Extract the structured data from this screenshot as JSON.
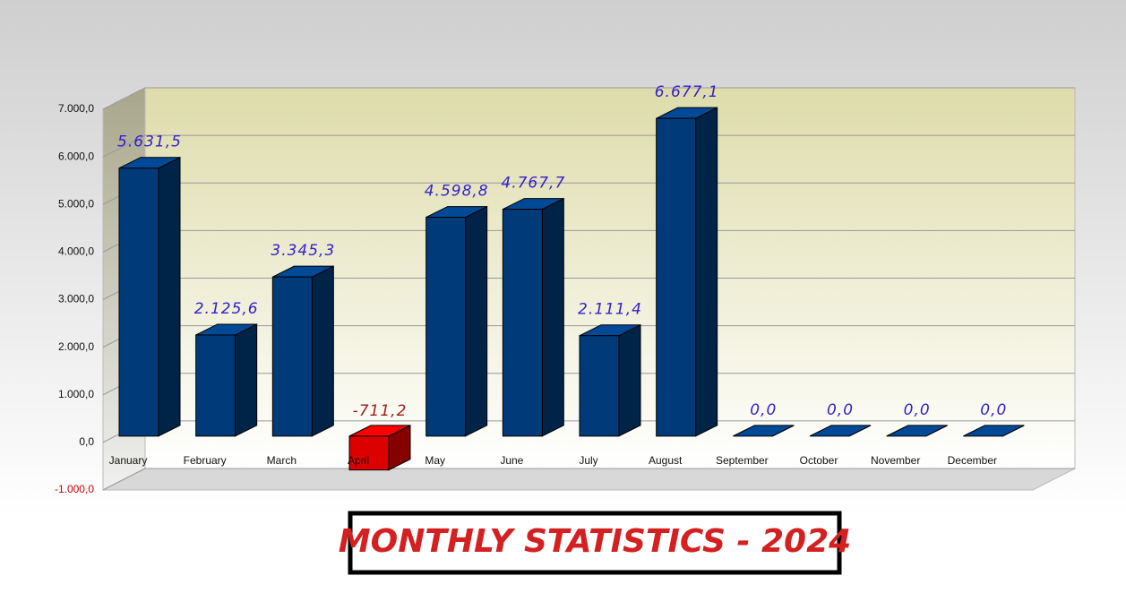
{
  "chart_data": {
    "type": "bar3d",
    "title": "MONTHLY STATISTICS - 2024",
    "categories": [
      "January",
      "February",
      "March",
      "April",
      "May",
      "June",
      "July",
      "August",
      "September",
      "October",
      "November",
      "December"
    ],
    "values": [
      5631.5,
      2125.6,
      3345.3,
      -711.2,
      4598.8,
      4767.7,
      2111.4,
      6677.1,
      0,
      0,
      0,
      0
    ],
    "value_labels": [
      "5.631,5",
      "2.125,6",
      "3.345,3",
      "-711,2",
      "4.598,8",
      "4.767,7",
      "2.111,4",
      "6.677,1",
      "0,0",
      "0,0",
      "0,0",
      "0,0"
    ],
    "color": "#003a78",
    "negative_color": "#dd0000",
    "ylim": [
      -1000,
      7000
    ],
    "yticks": [
      {
        "value": -1000,
        "label": "-1.000,0"
      },
      {
        "value": 0,
        "label": "0,0"
      },
      {
        "value": 1000,
        "label": "1.000,0"
      },
      {
        "value": 2000,
        "label": "2.000,0"
      },
      {
        "value": 3000,
        "label": "3.000,0"
      },
      {
        "value": 4000,
        "label": "4.000,0"
      },
      {
        "value": 5000,
        "label": "5.000,0"
      },
      {
        "value": 6000,
        "label": "6.000,0"
      },
      {
        "value": 7000,
        "label": "7.000,0"
      }
    ],
    "grid": true
  }
}
